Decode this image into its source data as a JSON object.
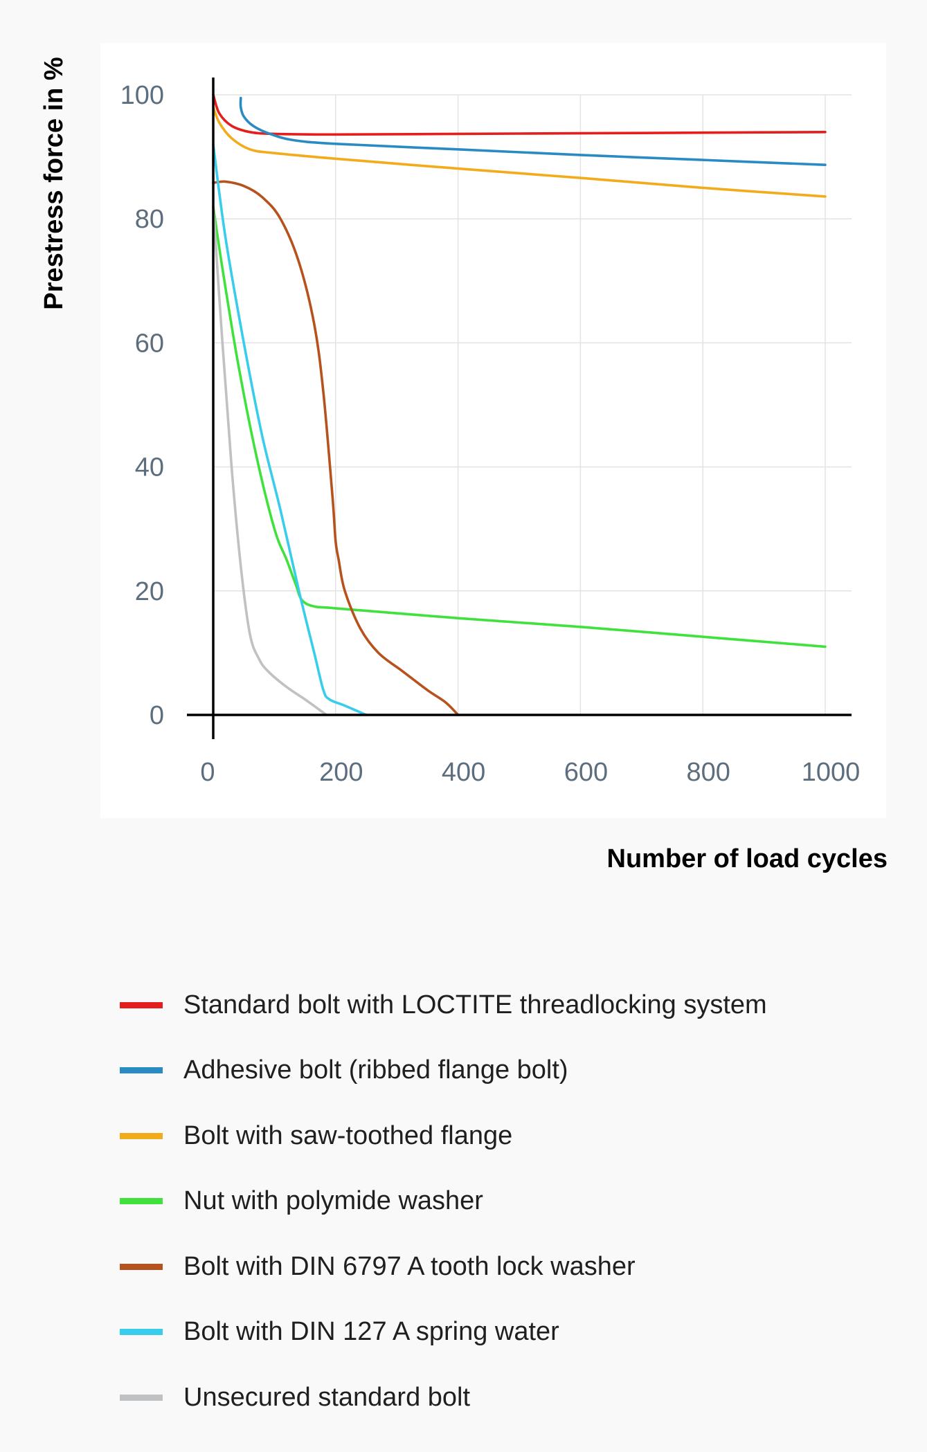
{
  "chart_data": {
    "type": "line",
    "title": "",
    "xlabel": "Number of load cycles",
    "ylabel": "Prestress force in %",
    "xlim": [
      0,
      1000
    ],
    "ylim": [
      0,
      100
    ],
    "xticks": [
      0,
      200,
      400,
      600,
      800,
      1000
    ],
    "yticks": [
      0,
      20,
      40,
      60,
      80,
      100
    ],
    "grid": true,
    "legend_position": "bottom",
    "series": [
      {
        "name": "Standard bolt with LOCTITE threadlocking system",
        "color": "#e41d1d",
        "points": [
          [
            0,
            100
          ],
          [
            10,
            97
          ],
          [
            30,
            95
          ],
          [
            60,
            94
          ],
          [
            100,
            93.7
          ],
          [
            200,
            93.6
          ],
          [
            400,
            93.7
          ],
          [
            600,
            93.8
          ],
          [
            800,
            93.9
          ],
          [
            1000,
            94
          ]
        ]
      },
      {
        "name": "Adhesive bolt (ribbed flange bolt)",
        "color": "#2a8ac4",
        "points": [
          [
            45,
            99.5
          ],
          [
            45,
            98
          ],
          [
            50,
            96.5
          ],
          [
            65,
            95
          ],
          [
            90,
            93.8
          ],
          [
            130,
            92.7
          ],
          [
            200,
            92.1
          ],
          [
            400,
            91.2
          ],
          [
            600,
            90.3
          ],
          [
            800,
            89.5
          ],
          [
            1000,
            88.7
          ]
        ]
      },
      {
        "name": "Bolt with saw-toothed flange",
        "color": "#f2ab1a",
        "points": [
          [
            0,
            98
          ],
          [
            10,
            95.5
          ],
          [
            30,
            93
          ],
          [
            60,
            91.2
          ],
          [
            100,
            90.6
          ],
          [
            200,
            89.7
          ],
          [
            400,
            88.1
          ],
          [
            600,
            86.6
          ],
          [
            800,
            85
          ],
          [
            1000,
            83.6
          ]
        ]
      },
      {
        "name": "Nut with polymide washer",
        "color": "#3fe23c",
        "points": [
          [
            0,
            82
          ],
          [
            15,
            72
          ],
          [
            40,
            57
          ],
          [
            70,
            42
          ],
          [
            100,
            30
          ],
          [
            120,
            25
          ],
          [
            135,
            21
          ],
          [
            145,
            18.5
          ],
          [
            165,
            17.5
          ],
          [
            200,
            17.2
          ],
          [
            400,
            15.6
          ],
          [
            600,
            14.2
          ],
          [
            800,
            12.6
          ],
          [
            1000,
            11
          ]
        ]
      },
      {
        "name": "Bolt with DIN 6797 A tooth lock washer",
        "color": "#b5521d",
        "points": [
          [
            0,
            85.8
          ],
          [
            20,
            86
          ],
          [
            50,
            85.3
          ],
          [
            80,
            83.5
          ],
          [
            110,
            80
          ],
          [
            140,
            73
          ],
          [
            165,
            63
          ],
          [
            180,
            52
          ],
          [
            195,
            35
          ],
          [
            200,
            28
          ],
          [
            205,
            25
          ],
          [
            215,
            20
          ],
          [
            240,
            14
          ],
          [
            270,
            10
          ],
          [
            310,
            7
          ],
          [
            350,
            4
          ],
          [
            380,
            2
          ],
          [
            400,
            0
          ]
        ]
      },
      {
        "name": "Bolt with DIN 127 A spring water",
        "color": "#38cdea",
        "points": [
          [
            0,
            92
          ],
          [
            20,
            77
          ],
          [
            50,
            60
          ],
          [
            80,
            45
          ],
          [
            110,
            33
          ],
          [
            140,
            20
          ],
          [
            165,
            10
          ],
          [
            180,
            4
          ],
          [
            190,
            2.5
          ],
          [
            215,
            1.5
          ],
          [
            250,
            0
          ]
        ]
      },
      {
        "name": "Unsecured standard bolt",
        "color": "#bfc1c2",
        "points": [
          [
            0,
            82
          ],
          [
            15,
            60
          ],
          [
            30,
            40
          ],
          [
            45,
            24
          ],
          [
            60,
            13
          ],
          [
            75,
            9
          ],
          [
            90,
            7
          ],
          [
            120,
            4.5
          ],
          [
            150,
            2.5
          ],
          [
            185,
            0
          ]
        ]
      }
    ]
  }
}
